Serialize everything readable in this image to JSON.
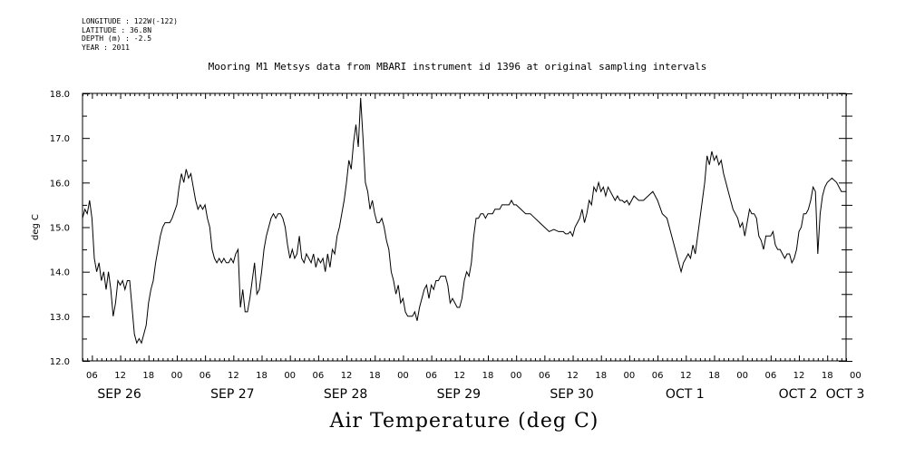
{
  "header": {
    "meta_lines": [
      "LONGITUDE : 122W(-122)",
      "LATITUDE : 36.8N",
      "DEPTH (m) : -2.5",
      "YEAR : 2011"
    ],
    "title": "Mooring M1 Metsys data from MBARI instrument id 1396 at original sampling intervals"
  },
  "chart_data": {
    "type": "line",
    "title": "Mooring M1 Metsys data from MBARI instrument id 1396 at original sampling intervals",
    "xlabel": "Air Temperature (deg C)",
    "ylabel": "deg C",
    "ylim": [
      12.0,
      18.0
    ],
    "y_ticks": [
      "12.0",
      "13.0",
      "14.0",
      "15.0",
      "16.0",
      "17.0",
      "18.0"
    ],
    "xlim_hours": [
      4,
      166
    ],
    "x_tick_labels": [
      "06",
      "12",
      "18",
      "00",
      "06",
      "12",
      "18",
      "00",
      "06",
      "12",
      "18",
      "00",
      "06",
      "12",
      "18",
      "00",
      "06",
      "12",
      "18",
      "00",
      "06",
      "12",
      "18",
      "00",
      "06",
      "12",
      "18",
      "00"
    ],
    "x_date_labels": [
      {
        "label": "SEP 26",
        "hour": 12
      },
      {
        "label": "SEP 27",
        "hour": 36
      },
      {
        "label": "SEP 28",
        "hour": 60
      },
      {
        "label": "SEP 29",
        "hour": 84
      },
      {
        "label": "SEP 30",
        "hour": 108
      },
      {
        "label": "OCT  1",
        "hour": 132
      },
      {
        "label": "OCT  2",
        "hour": 156
      },
      {
        "label": "OCT  3",
        "hour": 166
      }
    ],
    "grid": false,
    "series": [
      {
        "x": [
          4,
          4.5,
          5,
          5.5,
          6,
          6.5,
          7,
          7.5,
          8,
          8.5,
          9,
          9.5,
          10,
          10.5,
          11,
          11.5,
          12,
          12.5,
          13,
          13.5,
          14,
          14.5,
          15,
          15.5,
          16,
          16.5,
          17,
          17.5,
          18,
          18.5,
          19,
          19.5,
          20,
          20.5,
          21,
          21.5,
          22,
          22.5,
          23,
          24,
          24.5,
          25,
          25.5,
          26,
          26.5,
          27,
          27.5,
          28,
          28.5,
          29,
          29.5,
          30,
          30.5,
          31,
          31.5,
          32,
          32.5,
          33,
          33.5,
          34,
          34.5,
          35,
          35.5,
          36,
          36.5,
          37,
          37.5,
          38,
          38.5,
          39,
          39.5,
          40,
          40.5,
          41,
          41.5,
          42,
          42.5,
          43,
          43.5,
          44,
          44.5,
          45,
          45.5,
          46,
          46.5,
          47,
          47.5,
          48,
          48.5,
          49,
          49.5,
          50,
          50.5,
          51,
          51.5,
          52,
          52.5,
          53,
          53.5,
          54,
          54.5,
          55,
          55.5,
          56,
          56.5,
          57,
          57.5,
          58,
          58.5,
          59,
          59.5,
          60,
          60.5,
          61,
          61.5,
          62,
          62.5,
          63,
          63.5,
          64,
          64.5,
          65,
          65.5,
          66,
          66.5,
          67,
          67.5,
          68,
          68.5,
          69,
          69.5,
          70,
          70.5,
          71,
          71.5,
          72,
          72.5,
          73,
          73.5,
          74,
          74.5,
          75,
          75.5,
          76,
          76.5,
          77,
          77.5,
          78,
          78.5,
          79,
          79.5,
          80,
          80.5,
          81,
          81.5,
          82,
          82.5,
          83,
          83.5,
          84,
          84.5,
          85,
          85.5,
          86,
          86.5,
          87,
          87.5,
          88,
          88.5,
          89,
          89.5,
          90,
          90.5,
          91,
          91.5,
          92,
          92.5,
          93,
          93.5,
          94,
          94.5,
          95,
          95.5,
          96,
          97,
          98,
          99,
          100,
          101,
          102,
          103,
          104,
          105,
          106,
          106.5,
          107,
          107.5,
          108,
          108.5,
          109,
          109.5,
          110,
          110.5,
          111,
          111.5,
          112,
          112.5,
          113,
          113.5,
          114,
          114.5,
          115,
          115.5,
          116,
          116.5,
          117,
          117.5,
          118,
          118.5,
          119,
          119.5,
          120,
          121,
          122,
          123,
          124,
          125,
          126,
          127,
          128,
          129,
          130,
          131,
          131.5,
          132,
          132.5,
          133,
          133.5,
          134,
          134.5,
          135,
          135.5,
          136,
          136.5,
          137,
          137.5,
          138,
          138.5,
          139,
          139.5,
          140,
          140.5,
          141,
          141.5,
          142,
          142.5,
          143,
          143.5,
          144,
          144.5,
          145,
          145.5,
          146,
          146.5,
          147,
          147.5,
          148,
          148.5,
          149,
          149.5,
          150,
          150.5,
          151,
          151.5,
          152,
          152.5,
          153,
          153.5,
          154,
          154.5,
          155,
          155.5,
          156,
          156.5,
          157,
          157.5,
          158,
          158.5,
          159,
          159.5,
          160,
          160.5,
          161,
          161.5,
          162,
          163,
          164,
          165,
          166
        ],
        "y": [
          15.2,
          15.4,
          15.3,
          15.6,
          15.2,
          14.3,
          14.0,
          14.2,
          13.8,
          14.0,
          13.6,
          14.0,
          13.6,
          13.0,
          13.3,
          13.8,
          13.7,
          13.8,
          13.6,
          13.8,
          13.8,
          13.2,
          12.6,
          12.4,
          12.5,
          12.4,
          12.6,
          12.8,
          13.3,
          13.6,
          13.8,
          14.2,
          14.5,
          14.8,
          15.0,
          15.1,
          15.1,
          15.1,
          15.2,
          15.5,
          15.9,
          16.2,
          16.0,
          16.3,
          16.1,
          16.2,
          15.9,
          15.6,
          15.4,
          15.5,
          15.4,
          15.5,
          15.2,
          15.0,
          14.5,
          14.3,
          14.2,
          14.3,
          14.2,
          14.3,
          14.2,
          14.2,
          14.3,
          14.2,
          14.4,
          14.5,
          13.2,
          13.6,
          13.1,
          13.1,
          13.4,
          13.8,
          14.2,
          13.5,
          13.6,
          14.0,
          14.5,
          14.8,
          15.0,
          15.2,
          15.3,
          15.2,
          15.3,
          15.3,
          15.2,
          15.0,
          14.6,
          14.3,
          14.5,
          14.3,
          14.4,
          14.8,
          14.3,
          14.2,
          14.4,
          14.3,
          14.2,
          14.4,
          14.1,
          14.3,
          14.2,
          14.3,
          14.0,
          14.4,
          14.1,
          14.5,
          14.4,
          14.8,
          15.0,
          15.3,
          15.6,
          16.0,
          16.5,
          16.3,
          16.9,
          17.3,
          16.8,
          17.9,
          17.0,
          16.0,
          15.8,
          15.4,
          15.6,
          15.3,
          15.1,
          15.1,
          15.2,
          15.0,
          14.7,
          14.5,
          14.0,
          13.8,
          13.5,
          13.7,
          13.3,
          13.4,
          13.1,
          13.0,
          13.0,
          13.0,
          13.1,
          12.9,
          13.2,
          13.4,
          13.6,
          13.7,
          13.4,
          13.7,
          13.6,
          13.8,
          13.8,
          13.9,
          13.9,
          13.9,
          13.7,
          13.3,
          13.4,
          13.3,
          13.2,
          13.2,
          13.4,
          13.8,
          14.0,
          13.9,
          14.2,
          14.8,
          15.2,
          15.2,
          15.3,
          15.3,
          15.2,
          15.3,
          15.3,
          15.3,
          15.4,
          15.4,
          15.4,
          15.5,
          15.5,
          15.5,
          15.5,
          15.6,
          15.5,
          15.5,
          15.4,
          15.3,
          15.3,
          15.2,
          15.1,
          15.0,
          14.9,
          14.95,
          14.9,
          14.9,
          14.85,
          14.85,
          14.9,
          14.8,
          15.0,
          15.1,
          15.2,
          15.4,
          15.1,
          15.3,
          15.6,
          15.5,
          15.9,
          15.8,
          16.0,
          15.8,
          15.9,
          15.7,
          15.9,
          15.8,
          15.7,
          15.6,
          15.7,
          15.6,
          15.6,
          15.55,
          15.6,
          15.5,
          15.7,
          15.6,
          15.6,
          15.7,
          15.8,
          15.6,
          15.3,
          15.2,
          14.8,
          14.4,
          14.0,
          14.2,
          14.3,
          14.4,
          14.3,
          14.6,
          14.4,
          14.8,
          15.2,
          15.6,
          16.0,
          16.6,
          16.4,
          16.7,
          16.5,
          16.6,
          16.4,
          16.5,
          16.2,
          16.0,
          15.8,
          15.6,
          15.4,
          15.3,
          15.2,
          15.0,
          15.1,
          14.8,
          15.1,
          15.4,
          15.3,
          15.3,
          15.2,
          14.8,
          14.7,
          14.5,
          14.8,
          14.8,
          14.8,
          14.9,
          14.6,
          14.5,
          14.5,
          14.4,
          14.3,
          14.4,
          14.4,
          14.2,
          14.3,
          14.5,
          14.9,
          15.0,
          15.3,
          15.3,
          15.4,
          15.6,
          15.9,
          15.8,
          14.4,
          15.3,
          15.7,
          15.9,
          16.0,
          16.1,
          16.0,
          15.8,
          15.8
        ]
      }
    ]
  }
}
